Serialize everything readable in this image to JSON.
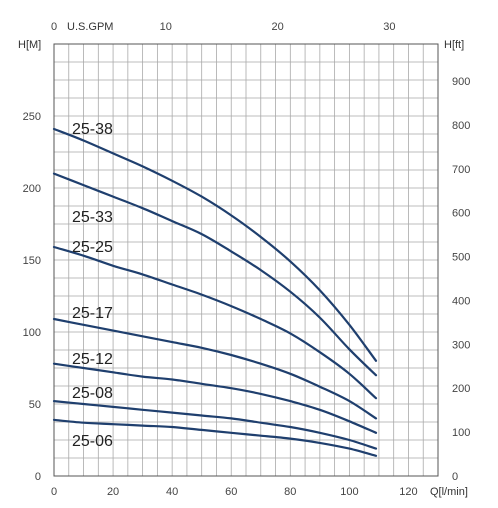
{
  "chart_data": {
    "type": "line",
    "xlabel": "Q[l/min]",
    "ylabel_left": "H[M]",
    "ylabel_right": "H[ft]",
    "x2label": "U.S.GPM",
    "xlim": [
      0,
      130
    ],
    "ylim": [
      0,
      300
    ],
    "x_ticks": [
      0,
      20,
      40,
      60,
      80,
      100,
      120
    ],
    "y_ticks": [
      0,
      50,
      100,
      150,
      200,
      250
    ],
    "x2_ticks": [
      0,
      10,
      20,
      30
    ],
    "y2_ticks": [
      0,
      100,
      200,
      300,
      400,
      500,
      600,
      700,
      800,
      900
    ],
    "x2_factor_lpm_per_gpm": 3.785,
    "y2_factor_m_per_ft": 0.3048,
    "grid": true,
    "series": [
      {
        "name": "25-38",
        "x": [
          0,
          10,
          20,
          30,
          40,
          50,
          60,
          70,
          80,
          90,
          100,
          109
        ],
        "y": [
          241,
          233,
          224,
          215,
          205,
          194,
          181,
          166,
          149,
          129,
          105,
          80
        ]
      },
      {
        "name": "25-33",
        "x": [
          0,
          10,
          20,
          30,
          40,
          50,
          60,
          70,
          80,
          90,
          100,
          109
        ],
        "y": [
          210,
          202,
          194,
          186,
          177,
          168,
          156,
          143,
          128,
          110,
          88,
          70
        ]
      },
      {
        "name": "25-25",
        "x": [
          0,
          10,
          20,
          30,
          40,
          50,
          60,
          70,
          80,
          90,
          100,
          109
        ],
        "y": [
          159,
          153,
          146,
          140,
          133,
          126,
          118,
          109,
          99,
          86,
          71,
          54
        ]
      },
      {
        "name": "25-17",
        "x": [
          0,
          10,
          20,
          30,
          40,
          50,
          60,
          70,
          80,
          90,
          100,
          109
        ],
        "y": [
          109,
          105,
          101,
          97,
          93,
          89,
          84,
          78,
          71,
          62,
          52,
          40
        ]
      },
      {
        "name": "25-12",
        "x": [
          0,
          10,
          20,
          30,
          40,
          50,
          60,
          70,
          80,
          90,
          100,
          109
        ],
        "y": [
          78,
          75,
          72,
          69,
          67,
          64,
          61,
          57,
          52,
          46,
          38,
          30
        ]
      },
      {
        "name": "25-08",
        "x": [
          0,
          10,
          20,
          30,
          40,
          50,
          60,
          70,
          80,
          90,
          100,
          109
        ],
        "y": [
          52,
          50,
          48,
          46,
          44,
          42,
          40,
          37,
          34,
          30,
          25,
          19
        ]
      },
      {
        "name": "25-06",
        "x": [
          0,
          10,
          20,
          30,
          40,
          50,
          60,
          70,
          80,
          90,
          100,
          109
        ],
        "y": [
          39,
          37,
          36,
          35,
          34,
          32,
          30,
          28,
          26,
          23,
          19,
          14
        ]
      }
    ]
  }
}
